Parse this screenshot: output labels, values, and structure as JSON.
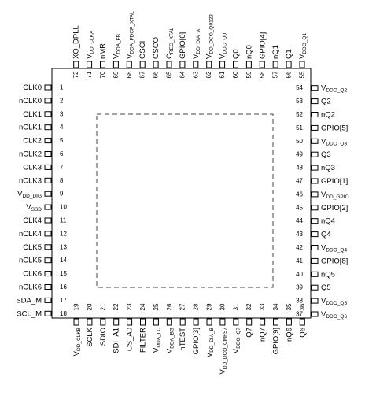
{
  "pins": {
    "left": [
      {
        "number": 1,
        "label": "CLK0"
      },
      {
        "number": 2,
        "label": "nCLK0"
      },
      {
        "number": 3,
        "label": "CLK1"
      },
      {
        "number": 4,
        "label": "nCLK1"
      },
      {
        "number": 5,
        "label": "CLK2"
      },
      {
        "number": 6,
        "label": "nCLK2"
      },
      {
        "number": 7,
        "label": "CLK3"
      },
      {
        "number": 8,
        "label": "nCLK3"
      },
      {
        "number": 9,
        "label": "V",
        "sub": "DD_DIG"
      },
      {
        "number": 10,
        "label": "V",
        "sub": "SSD"
      },
      {
        "number": 11,
        "label": "CLK4"
      },
      {
        "number": 12,
        "label": "nCLK4"
      },
      {
        "number": 13,
        "label": "CLK5"
      },
      {
        "number": 14,
        "label": "nCLK5"
      },
      {
        "number": 15,
        "label": "CLK6"
      },
      {
        "number": 16,
        "label": "nCLK6"
      },
      {
        "number": 17,
        "label": "SDA_M"
      },
      {
        "number": 18,
        "label": "SCL_M"
      }
    ],
    "bottom": [
      {
        "number": 19,
        "label": "V",
        "sub": "DD_CLKB"
      },
      {
        "number": 20,
        "label": "SCLK"
      },
      {
        "number": 21,
        "label": "SDIO"
      },
      {
        "number": 22,
        "label": "SDI_A1"
      },
      {
        "number": 23,
        "label": "CS_A0"
      },
      {
        "number": 24,
        "label": "FILTER"
      },
      {
        "number": 25,
        "label": "V",
        "sub": "DDA_LC"
      },
      {
        "number": 26,
        "label": "V",
        "sub": "DDA_BG"
      },
      {
        "number": 27,
        "label": "nTEST"
      },
      {
        "number": 28,
        "label": "GPIO[3]"
      },
      {
        "number": 29,
        "label": "V",
        "sub": "DD_DIA_B"
      },
      {
        "number": 30,
        "label": "V",
        "sub": "DD_DCO_CMFS7"
      },
      {
        "number": 31,
        "label": "V",
        "sub": "DDO_Q7"
      },
      {
        "number": 32,
        "label": "Q7"
      },
      {
        "number": 33,
        "label": "nQ7"
      },
      {
        "number": 34,
        "label": "GPIO[9]"
      },
      {
        "number": 35,
        "label": "nQ6"
      },
      {
        "number": 36,
        "label": "Q6"
      }
    ],
    "right": [
      {
        "number": 37,
        "label": "V",
        "sub": "DDO_Q6"
      },
      {
        "number": 38,
        "label": "V",
        "sub": "DDO_Q5"
      },
      {
        "number": 39,
        "label": "Q5"
      },
      {
        "number": 40,
        "label": "nQ5"
      },
      {
        "number": 41,
        "label": "GPIO[8]"
      },
      {
        "number": 42,
        "label": "V",
        "sub": "DDO_Q4"
      },
      {
        "number": 43,
        "label": "Q4"
      },
      {
        "number": 44,
        "label": "nQ4"
      },
      {
        "number": 45,
        "label": "GPIO[2]"
      },
      {
        "number": 46,
        "label": "V",
        "sub": "DD_GPIO"
      },
      {
        "number": 47,
        "label": "GPIO[1]"
      },
      {
        "number": 48,
        "label": "nQ3"
      },
      {
        "number": 49,
        "label": "Q3"
      },
      {
        "number": 50,
        "label": "V",
        "sub": "DDO_Q3"
      },
      {
        "number": 51,
        "label": "GPIO[5]"
      },
      {
        "number": 52,
        "label": "nQ2"
      },
      {
        "number": 53,
        "label": "Q2"
      },
      {
        "number": 54,
        "label": "V",
        "sub": "DDO_Q2"
      }
    ],
    "top": [
      {
        "number": 55,
        "label": "V",
        "sub": "DDO_Q1"
      },
      {
        "number": 56,
        "label": "Q1"
      },
      {
        "number": 57,
        "label": "nQ1"
      },
      {
        "number": 58,
        "label": "GPIO[4]"
      },
      {
        "number": 59,
        "label": "nQ0"
      },
      {
        "number": 60,
        "label": "Q0"
      },
      {
        "number": 61,
        "label": "V",
        "sub": "DDO_Q0"
      },
      {
        "number": 62,
        "label": "V",
        "sub": "DD_DCO_Q0123"
      },
      {
        "number": 63,
        "label": "V",
        "sub": "DD_DIA_A"
      },
      {
        "number": 64,
        "label": "GPIO[0]"
      },
      {
        "number": 65,
        "label": "C",
        "sub": "REG_XTAL"
      },
      {
        "number": 66,
        "label": "OSCO"
      },
      {
        "number": 67,
        "label": "OSCI"
      },
      {
        "number": 68,
        "label": "V",
        "sub": "DDA_FDCP_XTAL"
      },
      {
        "number": 69,
        "label": "V",
        "sub": "DDA_FB"
      },
      {
        "number": 70,
        "label": "nMR"
      },
      {
        "number": 71,
        "label": "V",
        "sub": "DD_CLKA"
      },
      {
        "number": 72,
        "label": "XO_DPLL"
      }
    ]
  }
}
